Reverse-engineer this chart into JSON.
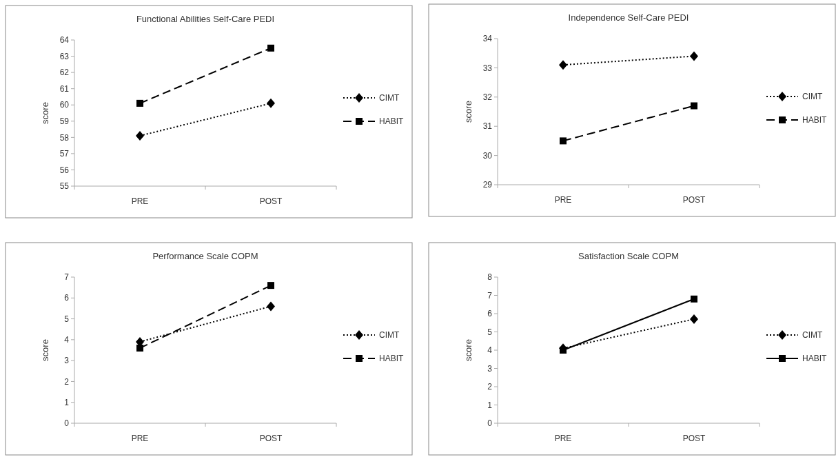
{
  "chart_data": [
    {
      "type": "line",
      "title": "Functional Abilities  Self-Care  PEDI",
      "ylabel": "score",
      "categories": [
        "PRE",
        "POST"
      ],
      "ylim": [
        55,
        64
      ],
      "yticks": [
        55,
        56,
        57,
        58,
        59,
        60,
        61,
        62,
        63,
        64
      ],
      "legend": "right",
      "grid": false,
      "series": [
        {
          "name": "CIMT",
          "color": "#000000",
          "values": [
            58.1,
            60.1
          ],
          "marker": "diamond",
          "line_style": "dotted"
        },
        {
          "name": "HABIT",
          "color": "#000000",
          "values": [
            60.1,
            63.5
          ],
          "marker": "square",
          "line_style": "dashed"
        }
      ]
    },
    {
      "type": "line",
      "title": "Independence Self-Care PEDI",
      "ylabel": "score",
      "categories": [
        "PRE",
        "POST"
      ],
      "ylim": [
        29,
        34
      ],
      "yticks": [
        29,
        30,
        31,
        32,
        33,
        34
      ],
      "legend": "right",
      "grid": false,
      "series": [
        {
          "name": "CIMT",
          "color": "#000000",
          "values": [
            33.1,
            33.4
          ],
          "marker": "diamond",
          "line_style": "dotted"
        },
        {
          "name": "HABIT",
          "color": "#000000",
          "values": [
            30.5,
            31.7
          ],
          "marker": "square",
          "line_style": "dashed"
        }
      ]
    },
    {
      "type": "line",
      "title": "Performance Scale COPM",
      "ylabel": "score",
      "categories": [
        "PRE",
        "POST"
      ],
      "ylim": [
        0,
        7
      ],
      "yticks": [
        0,
        1,
        2,
        3,
        4,
        5,
        6,
        7
      ],
      "legend": "right",
      "grid": false,
      "series": [
        {
          "name": "CIMT",
          "color": "#000000",
          "values": [
            3.9,
            5.6
          ],
          "marker": "diamond",
          "line_style": "dotted"
        },
        {
          "name": "HABIT",
          "color": "#000000",
          "values": [
            3.6,
            6.6
          ],
          "marker": "square",
          "line_style": "dashed"
        }
      ]
    },
    {
      "type": "line",
      "title": "Satisfaction Scale COPM",
      "ylabel": "score",
      "categories": [
        "PRE",
        "POST"
      ],
      "ylim": [
        0,
        8
      ],
      "yticks": [
        0,
        1,
        2,
        3,
        4,
        5,
        6,
        7,
        8
      ],
      "legend": "right",
      "grid": false,
      "series": [
        {
          "name": "CIMT",
          "color": "#000000",
          "values": [
            4.1,
            5.7
          ],
          "marker": "diamond",
          "line_style": "dotted"
        },
        {
          "name": "HABIT",
          "color": "#000000",
          "values": [
            4.0,
            6.8
          ],
          "marker": "square",
          "line_style": "solid"
        }
      ]
    }
  ]
}
